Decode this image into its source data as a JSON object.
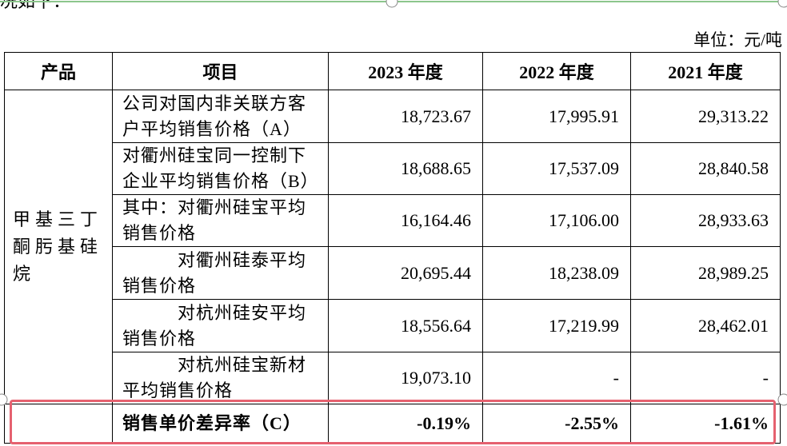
{
  "intro": "况如下：",
  "unit": "单位：元/吨",
  "table": {
    "header": [
      "产品",
      "项目",
      "2023 年度",
      "2022 年度",
      "2021 年度"
    ],
    "product": [
      "甲基三丁",
      "酮肟基硅",
      "烷"
    ],
    "rows": [
      {
        "item": [
          "公司对国内非关联方客",
          "户平均销售价格（A）"
        ],
        "values": [
          "18,723.67",
          "17,995.91",
          "29,313.22"
        ]
      },
      {
        "item": [
          "对衢州硅宝同一控制下",
          "企业平均销售价格（B）"
        ],
        "values": [
          "18,688.65",
          "17,537.09",
          "28,840.58"
        ]
      },
      {
        "item": [
          "其中：对衢州硅宝平均",
          "销售价格"
        ],
        "values": [
          "16,164.46",
          "17,106.00",
          "28,933.63"
        ]
      },
      {
        "item": [
          "　　　对衢州硅泰平均",
          "销售价格"
        ],
        "values": [
          "20,695.44",
          "18,238.09",
          "28,989.25"
        ]
      },
      {
        "item": [
          "　　　对杭州硅安平均",
          "销售价格"
        ],
        "values": [
          "18,556.64",
          "17,219.99",
          "28,462.01"
        ]
      },
      {
        "item": [
          "　　　对杭州硅宝新材",
          "平均销售价格"
        ],
        "values": [
          "19,073.10",
          "-",
          "-"
        ]
      }
    ],
    "summary": {
      "item": "销售单价差异率（C）",
      "values": [
        "-0.19%",
        "-2.55%",
        "-1.61%"
      ]
    }
  }
}
